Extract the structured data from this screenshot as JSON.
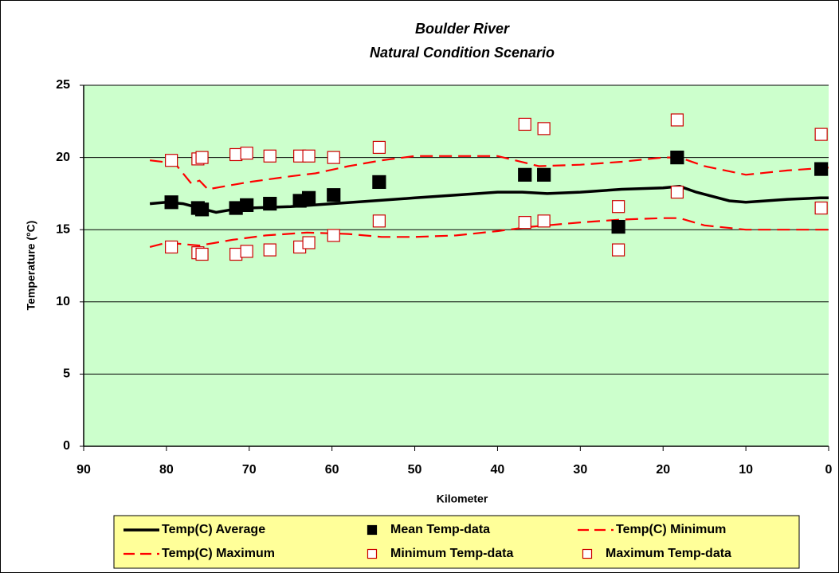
{
  "chart_data": {
    "type": "combo",
    "title": "Boulder River",
    "subtitle": "Natural Condition Scenario",
    "x_label": "Kilometer",
    "y_label": "Temperature (°C)",
    "xlim": [
      90,
      0
    ],
    "xticks": [
      90,
      80,
      70,
      60,
      50,
      40,
      30,
      20,
      10,
      0
    ],
    "ylim": [
      0,
      25
    ],
    "yticks": [
      0,
      5,
      10,
      15,
      20,
      25
    ],
    "grid": true,
    "legend": "bottom",
    "series": [
      {
        "name": "Temp(C) Average",
        "type": "line",
        "color": "#000000",
        "dash": false,
        "x": [
          82,
          80,
          78,
          76,
          74,
          72,
          70,
          65,
          60,
          55,
          50,
          45,
          40,
          37,
          34,
          30,
          25,
          20,
          18,
          16,
          12,
          10,
          5,
          1,
          0
        ],
        "values": [
          16.8,
          16.9,
          16.8,
          16.5,
          16.2,
          16.4,
          16.5,
          16.6,
          16.8,
          17.0,
          17.2,
          17.4,
          17.6,
          17.6,
          17.5,
          17.6,
          17.8,
          17.9,
          18.0,
          17.6,
          17.0,
          16.9,
          17.1,
          17.2,
          17.2
        ]
      },
      {
        "name": "Mean Temp-data",
        "type": "scatter",
        "marker": "filled",
        "color": "#000000",
        "x": [
          79.4,
          76.2,
          75.7,
          71.6,
          70.3,
          67.5,
          63.9,
          62.8,
          59.8,
          54.3,
          36.7,
          34.4,
          25.4,
          18.3,
          0.9
        ],
        "values": [
          16.9,
          16.5,
          16.4,
          16.5,
          16.7,
          16.8,
          17.0,
          17.2,
          17.4,
          18.3,
          18.8,
          18.8,
          15.2,
          20.0,
          19.2
        ]
      },
      {
        "name": "Temp(C) Minimum",
        "type": "line",
        "color": "#ff0000",
        "dash": true,
        "x": [
          82,
          80,
          78,
          76,
          72,
          68,
          63,
          58,
          54,
          50,
          45,
          40,
          36,
          30,
          25,
          20,
          18,
          15,
          10,
          5,
          0
        ],
        "values": [
          13.8,
          14.1,
          14.0,
          13.9,
          14.3,
          14.6,
          14.8,
          14.7,
          14.5,
          14.5,
          14.6,
          14.9,
          15.2,
          15.5,
          15.7,
          15.8,
          15.8,
          15.3,
          15.0,
          15.0,
          15.0
        ]
      },
      {
        "name": "Temp(C) Maximum",
        "type": "line",
        "color": "#ff0000",
        "dash": true,
        "x": [
          82,
          79,
          77,
          76,
          75,
          73,
          70,
          65,
          62,
          58,
          54,
          50,
          45,
          40,
          35,
          30,
          25,
          20,
          18,
          15,
          10,
          5,
          0
        ],
        "values": [
          19.8,
          19.6,
          18.2,
          18.4,
          17.8,
          18.0,
          18.3,
          18.7,
          18.9,
          19.4,
          19.8,
          20.1,
          20.1,
          20.1,
          19.4,
          19.5,
          19.7,
          20.0,
          20.0,
          19.4,
          18.8,
          19.1,
          19.3
        ]
      },
      {
        "name": "Minimum Temp-data",
        "type": "scatter",
        "marker": "open",
        "color": "#cc0000",
        "x": [
          79.4,
          76.2,
          75.7,
          71.6,
          70.3,
          67.5,
          63.9,
          62.8,
          59.8,
          54.3,
          36.7,
          34.4,
          25.4,
          18.3,
          0.9
        ],
        "values": [
          13.8,
          13.4,
          13.3,
          13.3,
          13.5,
          13.6,
          13.8,
          14.1,
          14.6,
          15.6,
          15.5,
          15.6,
          13.6,
          17.6,
          16.5
        ]
      },
      {
        "name": "Maximum Temp-data",
        "type": "scatter",
        "marker": "open",
        "color": "#cc0000",
        "x": [
          79.4,
          76.2,
          75.7,
          71.6,
          70.3,
          67.5,
          63.9,
          62.8,
          59.8,
          54.3,
          36.7,
          34.4,
          25.4,
          18.3,
          0.9
        ],
        "values": [
          19.8,
          19.9,
          20.0,
          20.2,
          20.3,
          20.1,
          20.1,
          20.1,
          20.0,
          20.7,
          22.3,
          22.0,
          16.6,
          22.6,
          21.6
        ]
      }
    ]
  }
}
